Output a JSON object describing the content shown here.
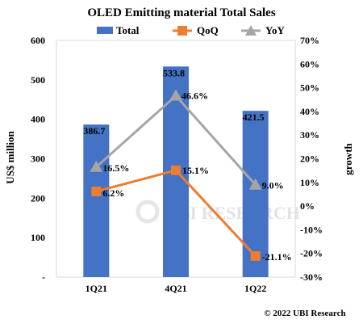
{
  "chart_data": {
    "type": "bar",
    "title": "OLED Emitting material Total Sales",
    "categories": [
      "1Q21",
      "4Q21",
      "1Q22"
    ],
    "ylabel": "US$ million",
    "y2label": "growth",
    "ylim": [
      0,
      600
    ],
    "y_ticks": [
      "-",
      "100",
      "200",
      "300",
      "400",
      "500",
      "600"
    ],
    "y2lim": [
      -30,
      70
    ],
    "y2_ticks": [
      "-30%",
      "-20%",
      "-10%",
      "0%",
      "10%",
      "20%",
      "30%",
      "40%",
      "50%",
      "60%",
      "70%"
    ],
    "legend_position": "top",
    "series": [
      {
        "name": "Total",
        "kind": "bar",
        "axis": "left",
        "color": "#4472c4",
        "values": [
          386.7,
          533.8,
          421.5
        ],
        "labels": [
          "386.7",
          "533.8",
          "421.5"
        ]
      },
      {
        "name": "QoQ",
        "kind": "line",
        "axis": "right",
        "color": "#ed7d31",
        "marker": "square",
        "values": [
          6.2,
          15.1,
          -21.1
        ],
        "labels": [
          "6.2%",
          "15.1%",
          "-21.1%"
        ]
      },
      {
        "name": "YoY",
        "kind": "line",
        "axis": "right",
        "color": "#a5a5a5",
        "marker": "triangle",
        "values": [
          16.5,
          46.6,
          9.0
        ],
        "labels": [
          "16.5%",
          "46.6%",
          "9.0%"
        ]
      }
    ]
  },
  "watermark": {
    "text": "UBI RESEARCH"
  },
  "copyright": "© 2022 UBI Research"
}
